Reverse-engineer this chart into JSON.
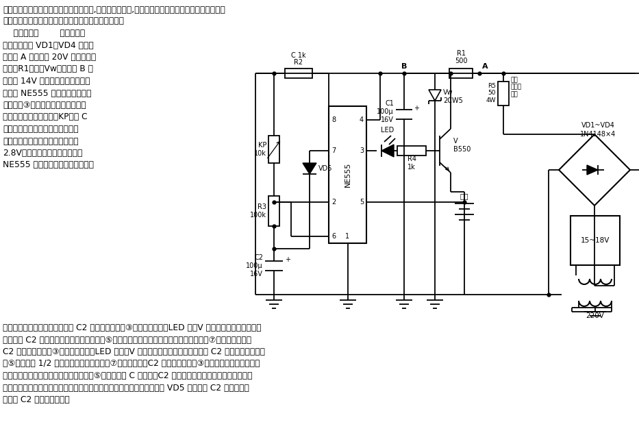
{
  "bg_color": "#ffffff",
  "text_color": "#000000",
  "header_line1": "本电路适用于对蓄电池或干电池进行充电,可控制充电电流,可检测电池电压并在电池电压接近额定电",
  "header_line2": "压时放快充电速度、使电池动态地维持在终点电压上。",
  "left_text_lines": [
    "    电路示于图        市电经变压",
    "器降压，再经 VD1～VD4 桥式整",
    "流，在 A 点形成约 20V 的电压。该",
    "电压经R1限流、Vw稳压。在 B 点",
    "形成约 14V 的稳定电压，此电压主",
    "要供给 NE555 工作，使其产生振",
    "荡，并从③脚输出控制信号，控制电",
    "池的充电过程，同时调节KP，在 C",
    "点建立基准电位。假设充电器只对",
    "两节镍镉电池进行充电，电位定在",
    "2.8V（比额定电压稍高一点）。",
    "NE555 对充电情况的检测过程是这"
  ],
  "bottom_text_lines": [
    "样的：一开机，作为振荡元件的 C2 处于充电状态，③脚输出高电平，LED 灭，V 截止，电源停止对电池的",
    "充电；当 C2 上的电压逐渐上升，以至大于⑤脚的电压（电池电压）时，内部电路触发，⑦脚对地呈短路，",
    "C2 对地放电，同时③脚变为低电平，LED 点亮，V 导通，电源对电池开始充电；当 C2 上的电压因放电低",
    "于⑤脚电压的 1/2 时，内部电路再次翻转，⑦脚与地断开，C2 开始充电，同时③脚又变为高电平。此后重",
    "复上述过程。当电池的充电即将完成时，⑤脚电压接近 C 点电压，C2 的充电过程逐渐放慢，电池的充电间",
    "隔变长，发光管长时间不亮，最后电池动态地维持在终点电压上。电路中 VD5 用于提高 C2 的充电频率",
    "（缩短 C2 的充电时间）。"
  ]
}
